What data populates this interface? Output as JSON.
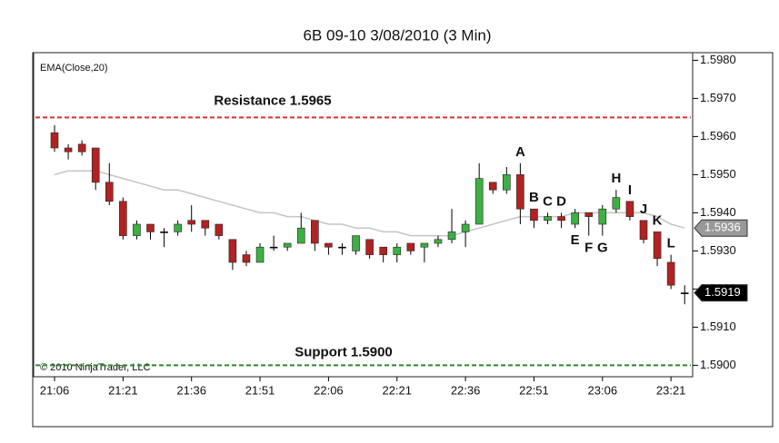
{
  "chart_data": {
    "type": "candlestick",
    "title": "6B 09-10  3/08/2010 (3 Min)",
    "copyright": "© 2010 NinjaTrader, LLC",
    "categories": [
      "21:06",
      null,
      null,
      null,
      null,
      "21:21",
      null,
      null,
      null,
      null,
      "21:36",
      null,
      null,
      null,
      null,
      "21:51",
      null,
      null,
      null,
      null,
      "22:06",
      null,
      null,
      null,
      null,
      "22:21",
      null,
      null,
      null,
      null,
      "22:36",
      null,
      null,
      null,
      null,
      "22:51",
      null,
      null,
      null,
      null,
      "23:06",
      null,
      null,
      null,
      null,
      "23:21",
      null
    ],
    "open": [
      1.5961,
      1.5957,
      1.5958,
      1.5957,
      1.5948,
      1.5943,
      1.5934,
      1.5937,
      1.5935,
      1.5935,
      1.5938,
      1.5938,
      1.5937,
      1.5933,
      1.5929,
      1.5927,
      1.5931,
      1.5931,
      1.5932,
      1.5938,
      1.5932,
      1.5931,
      1.593,
      1.5933,
      1.5931,
      1.5929,
      1.5932,
      1.5931,
      1.5932,
      1.5933,
      1.5935,
      1.5937,
      1.5948,
      1.5946,
      1.595,
      1.5941,
      1.5938,
      1.5939,
      1.5937,
      1.594,
      1.5937,
      1.5941,
      1.5943,
      1.5938,
      1.5935,
      1.5927,
      1.5919
    ],
    "high": [
      1.5963,
      1.5958,
      1.5959,
      1.5957,
      1.5953,
      1.5944,
      1.5938,
      1.5937,
      1.5936,
      1.5938,
      1.5942,
      1.5938,
      1.5937,
      1.5933,
      1.593,
      1.5932,
      1.5934,
      1.5932,
      1.594,
      1.5938,
      1.5932,
      1.5932,
      1.5934,
      1.5933,
      1.5931,
      1.5932,
      1.5932,
      1.5932,
      1.5934,
      1.5941,
      1.5938,
      1.5953,
      1.5948,
      1.5952,
      1.5953,
      1.5941,
      1.594,
      1.594,
      1.5941,
      1.594,
      1.5942,
      1.5946,
      1.5943,
      1.5938,
      1.5935,
      1.5929,
      1.5921
    ],
    "low": [
      1.5956,
      1.5954,
      1.5955,
      1.5946,
      1.5942,
      1.5933,
      1.5933,
      1.5933,
      1.5931,
      1.5934,
      1.5935,
      1.5934,
      1.5933,
      1.5925,
      1.5926,
      1.5927,
      1.593,
      1.593,
      1.5932,
      1.593,
      1.5929,
      1.5929,
      1.5929,
      1.5928,
      1.5927,
      1.5927,
      1.5929,
      1.5927,
      1.5931,
      1.5932,
      1.5931,
      1.5937,
      1.5945,
      1.5945,
      1.5937,
      1.5936,
      1.5937,
      1.5936,
      1.5936,
      1.5934,
      1.5934,
      1.594,
      1.5938,
      1.5932,
      1.5926,
      1.592,
      1.5916
    ],
    "close": [
      1.5957,
      1.5956,
      1.5956,
      1.5948,
      1.5943,
      1.5934,
      1.5937,
      1.5935,
      1.5935,
      1.5937,
      1.5937,
      1.5936,
      1.5934,
      1.5927,
      1.5927,
      1.5931,
      1.5931,
      1.5932,
      1.5936,
      1.5932,
      1.5931,
      1.5931,
      1.5934,
      1.5929,
      1.5929,
      1.5931,
      1.593,
      1.5932,
      1.5933,
      1.5935,
      1.5937,
      1.5949,
      1.5946,
      1.595,
      1.5941,
      1.5938,
      1.5939,
      1.5938,
      1.594,
      1.5939,
      1.5941,
      1.5944,
      1.5939,
      1.5933,
      1.5928,
      1.5921,
      1.5919
    ],
    "point_labels": [
      null,
      null,
      null,
      null,
      null,
      null,
      null,
      null,
      null,
      null,
      null,
      null,
      null,
      null,
      null,
      null,
      null,
      null,
      null,
      null,
      null,
      null,
      null,
      null,
      null,
      null,
      null,
      null,
      null,
      null,
      null,
      null,
      null,
      null,
      "A",
      "B",
      "C",
      "D",
      "E",
      "F",
      "G",
      "H",
      "I",
      "J",
      "K",
      "L",
      null
    ],
    "up_color": "#3cb043",
    "down_color": "#b22222",
    "ema": {
      "name": "EMA(Close,20)",
      "color": "#c4c4c4",
      "values": [
        1.595,
        1.5951,
        1.5951,
        1.5951,
        1.595,
        1.5949,
        1.5948,
        1.5947,
        1.5946,
        1.5946,
        1.5945,
        1.5944,
        1.5943,
        1.5942,
        1.5941,
        1.594,
        1.594,
        1.5939,
        1.5939,
        1.5938,
        1.5937,
        1.5937,
        1.5936,
        1.5936,
        1.5935,
        1.5935,
        1.5934,
        1.5934,
        1.5934,
        1.5934,
        1.5935,
        1.5936,
        1.5937,
        1.5938,
        1.5939,
        1.5939,
        1.5939,
        1.5939,
        1.594,
        1.594,
        1.594,
        1.594,
        1.594,
        1.594,
        1.5939,
        1.5937,
        1.5936
      ]
    },
    "reference_lines": [
      {
        "label": "Resistance 1.5965",
        "value": 1.5965,
        "color": "#e03030"
      },
      {
        "label": "Support 1.5900",
        "value": 1.59,
        "color": "#2a8a2a"
      }
    ],
    "price_markers": [
      {
        "value": 1.5936,
        "color": "#999999"
      },
      {
        "value": 1.5919,
        "color": "#000000"
      }
    ],
    "ylim": [
      1.5897,
      1.5982
    ],
    "yticks": [
      {
        "value": 1.59,
        "label": "1.5900"
      },
      {
        "value": 1.591,
        "label": "1.5910"
      },
      {
        "value": 1.592,
        "label": "1.5920"
      },
      {
        "value": 1.593,
        "label": "1.5930"
      },
      {
        "value": 1.594,
        "label": "1.5940"
      },
      {
        "value": 1.595,
        "label": "1.5950"
      },
      {
        "value": 1.596,
        "label": "1.5960"
      },
      {
        "value": 1.597,
        "label": "1.5970"
      },
      {
        "value": 1.598,
        "label": "1.5980"
      }
    ]
  }
}
